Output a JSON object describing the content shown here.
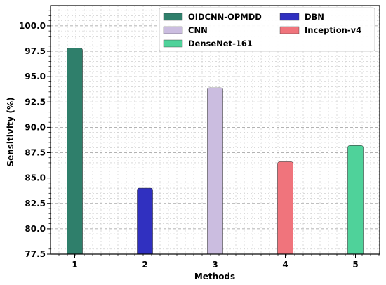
{
  "chart_data": {
    "type": "bar",
    "categories": [
      "1",
      "2",
      "3",
      "4",
      "5"
    ],
    "series": [
      {
        "name": "OIDCNN-OPMDD",
        "value": 97.8,
        "color": "#2f7f6b"
      },
      {
        "name": "DBN",
        "value": 84.0,
        "color": "#3030c0"
      },
      {
        "name": "CNN",
        "value": 93.9,
        "color": "#cbbde0"
      },
      {
        "name": "Inception-v4",
        "value": 86.6,
        "color": "#f0747c"
      },
      {
        "name": "DenseNet-161",
        "value": 88.2,
        "color": "#4fd29a"
      }
    ],
    "xlabel": "Methods",
    "ylabel": "Sensitivity (%)",
    "ylim": [
      77.5,
      102.0
    ],
    "yticks": [
      "77.5",
      "80.0",
      "82.5",
      "85.0",
      "87.5",
      "90.0",
      "92.5",
      "95.0",
      "97.5",
      "100.0"
    ],
    "grid": true,
    "legend_position": "top-right"
  }
}
